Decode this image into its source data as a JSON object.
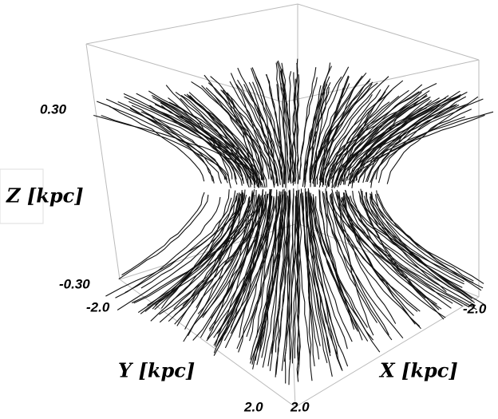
{
  "axes": {
    "z": {
      "label": "Z [kpc]",
      "ticks": [
        "0.30",
        "-0.30"
      ]
    },
    "y": {
      "label": "Y [kpc]",
      "ticks": [
        "-2.0",
        "2.0"
      ]
    },
    "x": {
      "label": "X [kpc]",
      "ticks": [
        "-2.0",
        "2.0"
      ]
    }
  }
}
